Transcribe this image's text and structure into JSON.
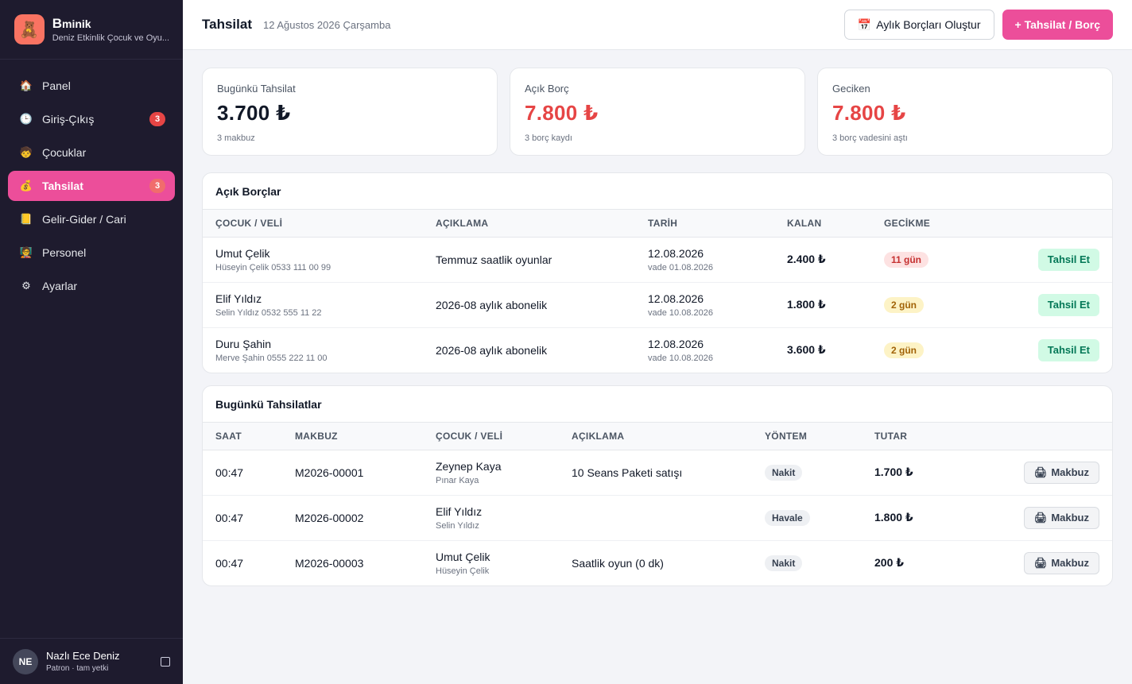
{
  "brand": {
    "initial": "B",
    "name_rest": "minik",
    "subtitle": "Deniz Etkinlik Çocuk ve Oyu...",
    "logo_icon": "🧸"
  },
  "nav": {
    "items": [
      {
        "label": "Panel",
        "icon": "🏠"
      },
      {
        "label": "Giriş-Çıkış",
        "icon": "🕒",
        "badge": "3"
      },
      {
        "label": "Çocuklar",
        "icon": "🧒"
      },
      {
        "label": "Tahsilat",
        "icon": "💰",
        "badge": "3",
        "active": true
      },
      {
        "label": "Gelir-Gider / Cari",
        "icon": "📒"
      },
      {
        "label": "Personel",
        "icon": "🧑‍🏫"
      },
      {
        "label": "Ayarlar",
        "icon": "⚙"
      }
    ]
  },
  "user": {
    "initials": "NE",
    "name": "Nazlı Ece Deniz",
    "role": "Patron · tam yetki"
  },
  "header": {
    "title": "Tahsilat",
    "date": "12 Ağustos 2026 Çarşamba",
    "create_debts_label": "Aylık Borçları Oluştur",
    "create_debts_icon": "📅",
    "add_label": "+ Tahsilat / Borç"
  },
  "stats": [
    {
      "label": "Bugünkü Tahsilat",
      "value": "3.700 ₺",
      "sub": "3 makbuz",
      "color": "#111827"
    },
    {
      "label": "Açık Borç",
      "value": "7.800 ₺",
      "sub": "3 borç kaydı",
      "color": "#e64545"
    },
    {
      "label": "Geciken",
      "value": "7.800 ₺",
      "sub": "3 borç vadesini aştı",
      "color": "#e64545"
    }
  ],
  "open_debts": {
    "title": "Açık Borçlar",
    "columns": [
      "ÇOCUK / VELİ",
      "AÇIKLAMA",
      "TARİH",
      "KALAN",
      "GECİKME"
    ],
    "action_label": "Tahsil Et",
    "rows": [
      {
        "child": "Umut Çelik",
        "parent": "Hüseyin Çelik 0533 111 00 99",
        "desc": "Temmuz saatlik oyunlar",
        "date": "12.08.2026",
        "due": "vade 01.08.2026",
        "remaining": "2.400 ₺",
        "delay": "11 gün",
        "delay_level": "red"
      },
      {
        "child": "Elif Yıldız",
        "parent": "Selin Yıldız 0532 555 11 22",
        "desc": "2026-08 aylık abonelik",
        "date": "12.08.2026",
        "due": "vade 10.08.2026",
        "remaining": "1.800 ₺",
        "delay": "2 gün",
        "delay_level": "yellow"
      },
      {
        "child": "Duru Şahin",
        "parent": "Merve Şahin 0555 222 11 00",
        "desc": "2026-08 aylık abonelik",
        "date": "12.08.2026",
        "due": "vade 10.08.2026",
        "remaining": "3.600 ₺",
        "delay": "2 gün",
        "delay_level": "yellow"
      }
    ]
  },
  "today_collections": {
    "title": "Bugünkü Tahsilatlar",
    "columns": [
      "SAAT",
      "MAKBUZ",
      "ÇOCUK / VELİ",
      "AÇIKLAMA",
      "YÖNTEM",
      "TUTAR"
    ],
    "action_label": "Makbuz",
    "action_icon": "🖨",
    "rows": [
      {
        "time": "00:47",
        "receipt": "M2026-00001",
        "child": "Zeynep Kaya",
        "parent": "Pınar Kaya",
        "desc": "10 Seans Paketi satışı",
        "method": "Nakit",
        "amount": "1.700 ₺"
      },
      {
        "time": "00:47",
        "receipt": "M2026-00002",
        "child": "Elif Yıldız",
        "parent": "Selin Yıldız",
        "desc": "",
        "method": "Havale",
        "amount": "1.800 ₺"
      },
      {
        "time": "00:47",
        "receipt": "M2026-00003",
        "child": "Umut Çelik",
        "parent": "Hüseyin Çelik",
        "desc": "Saatlik oyun (0 dk)",
        "method": "Nakit",
        "amount": "200 ₺"
      }
    ]
  }
}
